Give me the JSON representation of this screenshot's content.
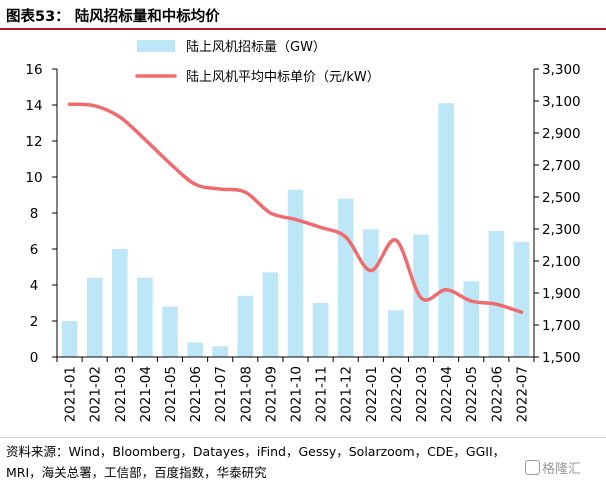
{
  "figure": {
    "title": "图表53： 陆风招标量和中标均价",
    "source": "资料来源：Wind，Bloomberg，Datayes，iFind，Gessy，Solarzoom，CDE，GGII，MRI，海关总署，工信部，百度指数，华泰研究",
    "watermark": "格隆汇"
  },
  "colors": {
    "bar": "#bde6f7",
    "line": "#ee6b6e",
    "title_rule": "#b2162c"
  },
  "chart_data": {
    "type": "bar+line",
    "categories": [
      "2021-01",
      "2021-02",
      "2021-03",
      "2021-04",
      "2021-05",
      "2021-06",
      "2021-07",
      "2021-08",
      "2021-09",
      "2021-10",
      "2021-11",
      "2021-12",
      "2022-01",
      "2022-02",
      "2022-03",
      "2022-04",
      "2022-05",
      "2022-06",
      "2022-07"
    ],
    "series": [
      {
        "name": "陆上风机招标量（GW）",
        "type": "bar",
        "axis": "left",
        "values": [
          2.0,
          4.4,
          6.0,
          4.4,
          2.8,
          0.8,
          0.6,
          3.4,
          4.7,
          9.3,
          3.0,
          8.8,
          7.1,
          2.6,
          6.8,
          14.1,
          4.2,
          7.0,
          6.4
        ]
      },
      {
        "name": "陆上风机平均中标单价（元/kW）",
        "type": "line",
        "axis": "right",
        "values": [
          3080,
          3070,
          3000,
          2860,
          2710,
          2580,
          2550,
          2530,
          2400,
          2360,
          2310,
          2250,
          2040,
          2230,
          1870,
          1920,
          1850,
          1830,
          1780
        ]
      }
    ],
    "y_left": {
      "range": [
        0,
        16
      ],
      "ticks": [
        "0",
        "2",
        "4",
        "6",
        "8",
        "10",
        "12",
        "14",
        "16"
      ]
    },
    "y_right": {
      "range": [
        1500,
        3300
      ],
      "ticks": [
        "1,500",
        "1,700",
        "1,900",
        "2,100",
        "2,300",
        "2,500",
        "2,700",
        "2,900",
        "3,100",
        "3,300"
      ]
    },
    "legend": "top",
    "grid": false
  }
}
